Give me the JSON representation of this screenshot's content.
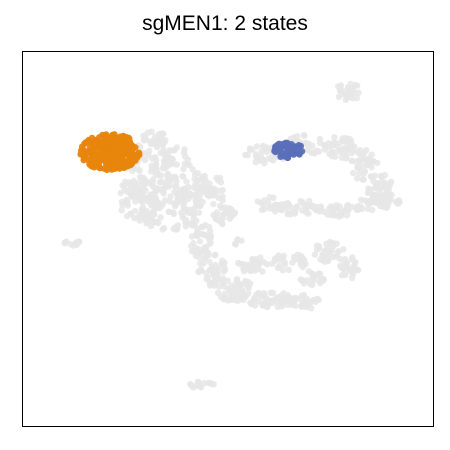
{
  "chart_data": {
    "type": "scatter",
    "title": "sgMEN1: 2 states",
    "xlabel": "",
    "ylabel": "",
    "axes_visible": false,
    "grid": false,
    "legend": "none",
    "background_color": "#e6e6e6",
    "series": [
      {
        "color": "#e8850c",
        "region_center": [
          110,
          152
        ],
        "region_spread": [
          30,
          18
        ]
      },
      {
        "color": "#5b6fb8",
        "region_center": [
          288,
          150
        ],
        "region_spread": [
          15,
          8
        ]
      }
    ]
  }
}
